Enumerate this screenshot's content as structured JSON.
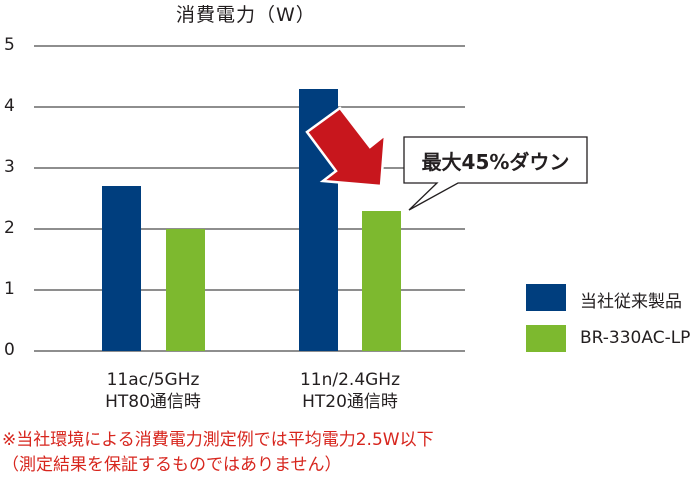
{
  "chart_data": {
    "type": "bar",
    "title": "消費電力（W）",
    "xlabel": "",
    "ylabel": "消費電力（W）",
    "ylim": [
      0,
      5
    ],
    "yticks": [
      "0",
      "1",
      "2",
      "3",
      "4",
      "5"
    ],
    "grid": true,
    "legend_position": "right",
    "categories": [
      "11ac/5GHz HT80通信時",
      "11n/2.4GHz HT20通信時"
    ],
    "category_lines": [
      [
        "11ac/5GHz",
        "HT80通信時"
      ],
      [
        "11n/2.4GHz",
        "HT20通信時"
      ]
    ],
    "series": [
      {
        "name": "当社従来製品",
        "color": "#003e7e",
        "values": [
          2.7,
          4.3
        ]
      },
      {
        "name": "BR-330AC-LP",
        "color": "#7db92f",
        "values": [
          2.0,
          2.3
        ]
      }
    ],
    "annotations": [
      {
        "text": "最大45%ダウン",
        "type": "callout",
        "arrow_color": "#c8161d"
      }
    ]
  },
  "notes": [
    "※当社環境による消費電力測定例では平均電力2.5W以下",
    "（測定結果を保証するものではありません）"
  ],
  "note_color": "#d7261e"
}
